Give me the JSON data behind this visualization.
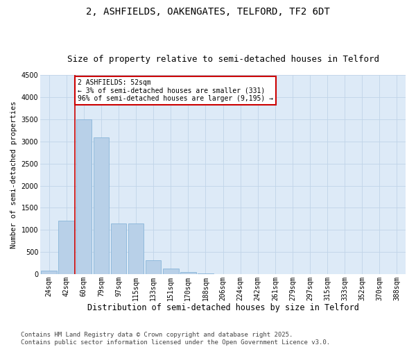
{
  "title": "2, ASHFIELDS, OAKENGATES, TELFORD, TF2 6DT",
  "subtitle": "Size of property relative to semi-detached houses in Telford",
  "xlabel": "Distribution of semi-detached houses by size in Telford",
  "ylabel": "Number of semi-detached properties",
  "categories": [
    "24sqm",
    "42sqm",
    "60sqm",
    "79sqm",
    "97sqm",
    "115sqm",
    "133sqm",
    "151sqm",
    "170sqm",
    "188sqm",
    "206sqm",
    "224sqm",
    "242sqm",
    "261sqm",
    "279sqm",
    "297sqm",
    "315sqm",
    "333sqm",
    "352sqm",
    "370sqm",
    "388sqm"
  ],
  "values": [
    80,
    1200,
    3500,
    3100,
    1150,
    1150,
    310,
    130,
    50,
    20,
    0,
    0,
    0,
    0,
    0,
    0,
    0,
    0,
    0,
    0,
    0
  ],
  "bar_color": "#b8d0e8",
  "bar_edge_color": "#7aadd4",
  "vline_pos": 1.5,
  "vline_color": "#cc0000",
  "annotation_text": "2 ASHFIELDS: 52sqm\n← 3% of semi-detached houses are smaller (331)\n96% of semi-detached houses are larger (9,195) →",
  "annotation_box_color": "#ffffff",
  "annotation_box_edge": "#cc0000",
  "ylim": [
    0,
    4500
  ],
  "yticks": [
    0,
    500,
    1000,
    1500,
    2000,
    2500,
    3000,
    3500,
    4000,
    4500
  ],
  "grid_color": "#c0d4e8",
  "background_color": "#ddeaf7",
  "footer_text": "Contains HM Land Registry data © Crown copyright and database right 2025.\nContains public sector information licensed under the Open Government Licence v3.0.",
  "title_fontsize": 10,
  "subtitle_fontsize": 9,
  "xlabel_fontsize": 8.5,
  "ylabel_fontsize": 7.5,
  "tick_fontsize": 7,
  "footer_fontsize": 6.5
}
